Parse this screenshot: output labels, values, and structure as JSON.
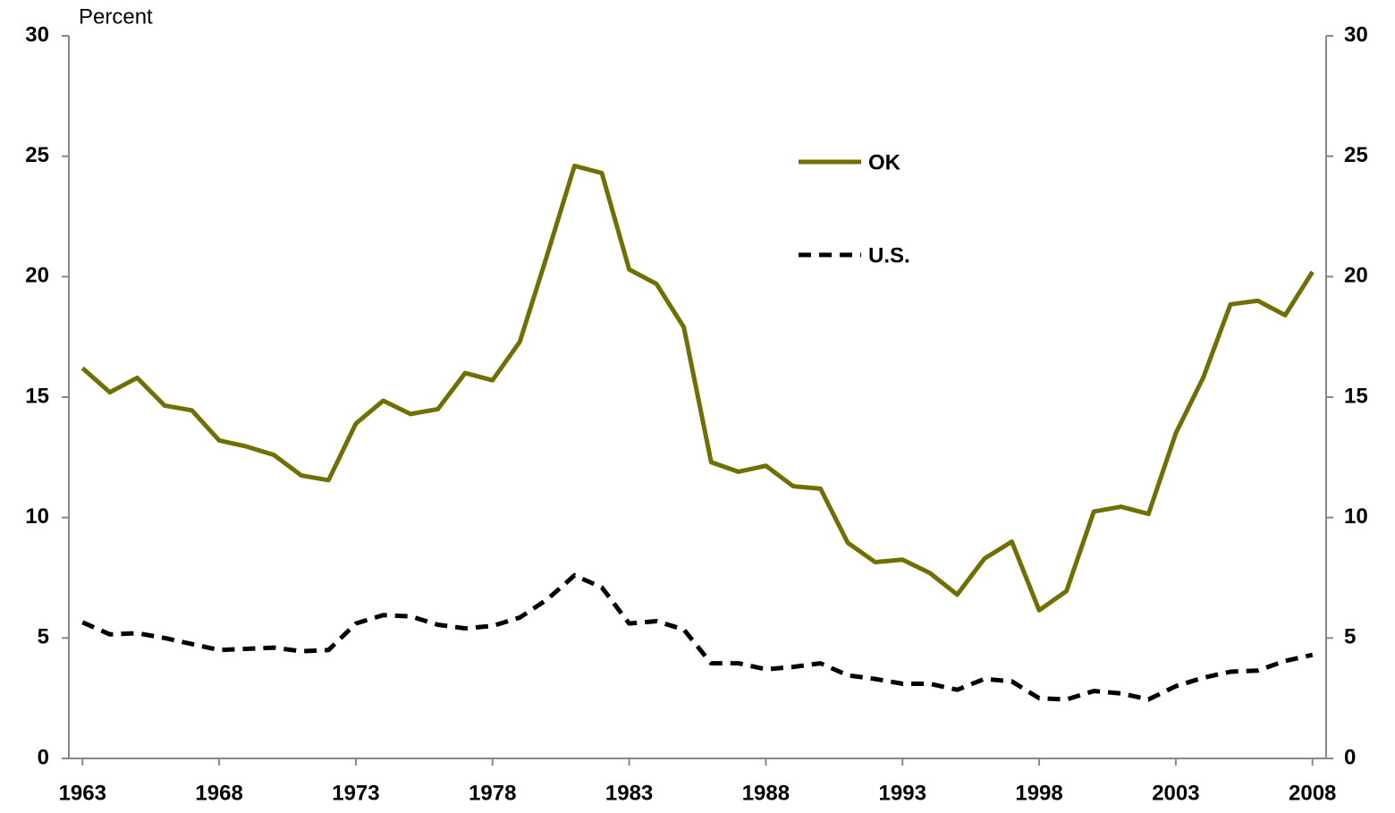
{
  "chart_data": {
    "type": "line",
    "y_label": "Percent",
    "x": [
      1963,
      1964,
      1965,
      1966,
      1967,
      1968,
      1969,
      1970,
      1971,
      1972,
      1973,
      1974,
      1975,
      1976,
      1977,
      1978,
      1979,
      1980,
      1981,
      1982,
      1983,
      1984,
      1985,
      1986,
      1987,
      1988,
      1989,
      1990,
      1991,
      1992,
      1993,
      1994,
      1995,
      1996,
      1997,
      1998,
      1999,
      2000,
      2001,
      2002,
      2003,
      2004,
      2005,
      2006,
      2007,
      2008
    ],
    "series": [
      {
        "name": "OK",
        "color": "#716f00",
        "style": "solid",
        "values": [
          16.2,
          15.2,
          15.8,
          14.65,
          14.45,
          13.2,
          12.95,
          12.6,
          11.75,
          11.55,
          13.9,
          14.85,
          14.3,
          14.5,
          16.0,
          15.7,
          17.3,
          20.9,
          24.6,
          24.3,
          20.3,
          19.7,
          17.9,
          12.3,
          11.9,
          12.15,
          11.3,
          11.2,
          8.95,
          8.15,
          8.25,
          7.7,
          6.8,
          8.3,
          9.0,
          6.15,
          6.95,
          10.25,
          10.45,
          10.15,
          13.5,
          15.8,
          18.85,
          19.0,
          18.4,
          20.2
        ]
      },
      {
        "name": "U.S.",
        "color": "#000000",
        "style": "dashed",
        "values": [
          5.65,
          5.15,
          5.2,
          5.0,
          4.75,
          4.5,
          4.55,
          4.6,
          4.45,
          4.5,
          5.6,
          5.95,
          5.9,
          5.55,
          5.4,
          5.5,
          5.85,
          6.6,
          7.6,
          7.1,
          5.6,
          5.7,
          5.35,
          3.95,
          3.95,
          3.7,
          3.8,
          3.95,
          3.45,
          3.3,
          3.1,
          3.1,
          2.85,
          3.3,
          3.2,
          2.5,
          2.45,
          2.8,
          2.7,
          2.45,
          3.0,
          3.35,
          3.6,
          3.65,
          4.05,
          4.3
        ]
      }
    ],
    "xlim": [
      1962.5,
      2008.5
    ],
    "xticks": [
      1963,
      1968,
      1973,
      1978,
      1983,
      1988,
      1993,
      1998,
      2003,
      2008
    ],
    "ylim": [
      0,
      30
    ],
    "yticks": [
      0,
      5,
      10,
      15,
      20,
      25,
      30
    ],
    "y2lim": [
      0,
      30
    ],
    "y2ticks": [
      0,
      5,
      10,
      15,
      20,
      25,
      30
    ],
    "grid": false,
    "legend": "top-center"
  }
}
